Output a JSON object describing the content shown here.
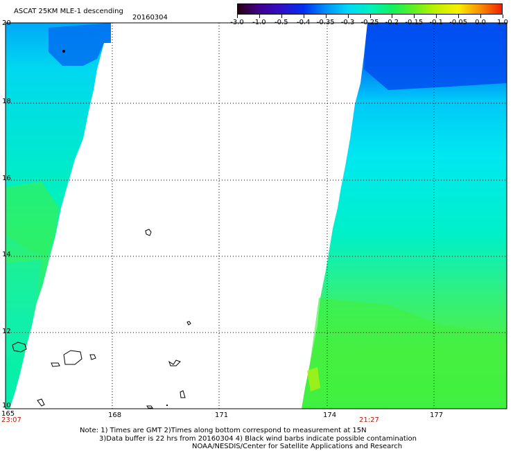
{
  "title": {
    "product": "ASCAT 25KM MLE-1 descending",
    "date": "20160304"
  },
  "colorbar": {
    "ticks": [
      "-3.0",
      "-1.0",
      "-0.5",
      "-0.4",
      "-0.35",
      "-0.3",
      "-0.25",
      "-0.2",
      "-0.15",
      "-0.1",
      "-0.05",
      "0.0",
      "1.0"
    ],
    "colors": [
      "#2a0010",
      "#400090",
      "#3010c8",
      "#0030f0",
      "#0090f8",
      "#00d8f8",
      "#00f0c0",
      "#10f060",
      "#60f020",
      "#c0f000",
      "#f8f000",
      "#f89000",
      "#f02000"
    ]
  },
  "axes": {
    "lat_labels": [
      "20",
      "18",
      "16",
      "14",
      "12",
      "10"
    ],
    "lon_labels": [
      "165",
      "168",
      "171",
      "174",
      "177"
    ],
    "time_left": "23:07",
    "time_right": "21:27"
  },
  "notes": {
    "line1": "Note: 1) Times are GMT 2)Times along bottom correspond to measurement at 15N",
    "line2": "3)Data buffer is 22 hrs from 20160304 4) Black wind barbs indicate possible contamination",
    "line3": "NOAA/NESDIS/Center for Satellite Applications and Research"
  }
}
